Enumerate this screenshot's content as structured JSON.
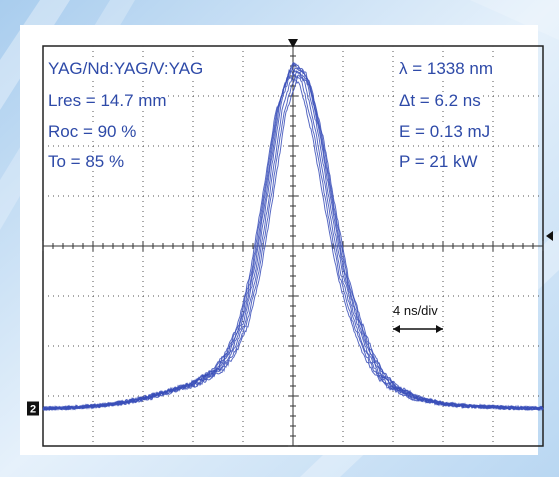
{
  "colors": {
    "trace": "#3a4fb8",
    "text": "#2e4aa8",
    "grid": "#555555",
    "background_accent": "#7fb0df"
  },
  "annotations": {
    "material": "YAG/Nd:YAG/V:YAG",
    "lres": "Lres = 14.7 mm",
    "roc": "Roc = 90 %",
    "to": "To = 85 %",
    "wavelength": "λ = 1338 nm",
    "pulse_width": "Δt = 6.2 ns",
    "energy": "E = 0.13 mJ",
    "peak_power": "P = 21 kW"
  },
  "timebase_label": "4 ns/div",
  "channel_marker": "2",
  "chart_data": {
    "type": "line",
    "title": "",
    "xlabel": "",
    "ylabel": "",
    "time_per_div_ns": 4,
    "x_divisions": 10,
    "y_divisions": 8,
    "grid": true,
    "x_unit": "ns",
    "y_unit": "divisions",
    "xlim": [
      -20,
      20
    ],
    "ylim": [
      -4,
      4
    ],
    "trace_count": 8,
    "series": [
      {
        "x": [
          -20,
          -18,
          -16,
          -14,
          -12,
          -10,
          -8,
          -6,
          -5,
          -4,
          -3,
          -2,
          -1,
          0,
          1,
          2,
          3,
          4,
          5,
          6,
          7,
          8,
          10,
          12,
          14,
          16,
          18,
          20
        ],
        "y": [
          -3.25,
          -3.24,
          -3.2,
          -3.15,
          -3.05,
          -2.9,
          -2.75,
          -2.45,
          -2.1,
          -1.5,
          -0.4,
          1.2,
          2.9,
          3.7,
          3.5,
          2.4,
          0.9,
          -0.5,
          -1.4,
          -2.1,
          -2.55,
          -2.8,
          -3.05,
          -3.15,
          -3.2,
          -3.22,
          -3.24,
          -3.25
        ]
      }
    ]
  }
}
